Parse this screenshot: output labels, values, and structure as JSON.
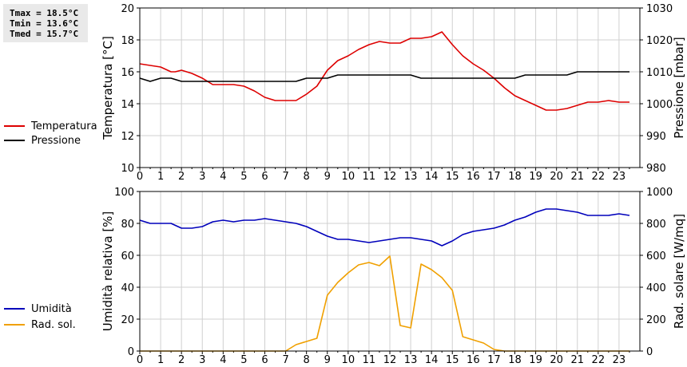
{
  "stats": {
    "tmax": "Tmax = 18.5°C",
    "tmin": "Tmin = 13.6°C",
    "tmed": "Tmed = 15.7°C"
  },
  "colors": {
    "temperature": "#dd0000",
    "pressure": "#000000",
    "humidity": "#0000bb",
    "radiation": "#f0a000"
  },
  "chart_data": [
    {
      "type": "line",
      "title": "",
      "xlabel": "",
      "ylabel": "Temperatura [°C]",
      "y2label": "Pressione [mbar]",
      "xlim": [
        0,
        24
      ],
      "ylim": [
        10,
        20
      ],
      "y2lim": [
        980,
        1030
      ],
      "xticks": [
        "0",
        "1",
        "2",
        "3",
        "4",
        "5",
        "6",
        "7",
        "8",
        "9",
        "10",
        "11",
        "12",
        "13",
        "14",
        "15",
        "16",
        "17",
        "18",
        "19",
        "20",
        "21",
        "22",
        "23"
      ],
      "yticks": [
        "10",
        "12",
        "14",
        "16",
        "18",
        "20"
      ],
      "y2ticks": [
        "980",
        "990",
        "1000",
        "1010",
        "1020",
        "1030"
      ],
      "grid": true,
      "legend": "left",
      "series": [
        {
          "name": "Temperatura",
          "axis": "left",
          "x": [
            0,
            0.5,
            1,
            1.5,
            1.7,
            2,
            2.5,
            3,
            3.5,
            4,
            4.5,
            5,
            5.5,
            6,
            6.5,
            7,
            7.5,
            8,
            8.5,
            9,
            9.5,
            10,
            10.5,
            11,
            11.5,
            12,
            12.5,
            13,
            13.5,
            14,
            14.5,
            15,
            15.5,
            16,
            16.5,
            17,
            17.5,
            18,
            18.5,
            19,
            19.5,
            20,
            20.5,
            21,
            21.5,
            22,
            22.5,
            23,
            23.5
          ],
          "y": [
            16.5,
            16.4,
            16.3,
            16.0,
            16.0,
            16.1,
            15.9,
            15.6,
            15.2,
            15.2,
            15.2,
            15.1,
            14.8,
            14.4,
            14.2,
            14.2,
            14.2,
            14.6,
            15.1,
            16.1,
            16.7,
            17.0,
            17.4,
            17.7,
            17.9,
            17.8,
            17.8,
            18.1,
            18.1,
            18.2,
            18.5,
            17.7,
            17.0,
            16.5,
            16.1,
            15.6,
            15.0,
            14.5,
            14.2,
            13.9,
            13.6,
            13.6,
            13.7,
            13.9,
            14.1,
            14.1,
            14.2,
            14.1,
            14.1
          ]
        },
        {
          "name": "Pressione",
          "axis": "right",
          "x": [
            0,
            0.5,
            1,
            1.5,
            2,
            2.5,
            3,
            3.5,
            4,
            4.5,
            5,
            5.5,
            6,
            6.5,
            7,
            7.5,
            8,
            8.5,
            9,
            9.5,
            10,
            10.5,
            11,
            11.5,
            12,
            12.5,
            13,
            13.5,
            14,
            14.5,
            15,
            15.5,
            16,
            16.5,
            17,
            17.5,
            18,
            18.5,
            19,
            19.5,
            20,
            20.5,
            21,
            21.5,
            22,
            22.5,
            23,
            23.5
          ],
          "y": [
            1008,
            1007,
            1008,
            1008,
            1007,
            1007,
            1007,
            1007,
            1007,
            1007,
            1007,
            1007,
            1007,
            1007,
            1007,
            1007,
            1008,
            1008,
            1008,
            1009,
            1009,
            1009,
            1009,
            1009,
            1009,
            1009,
            1009,
            1008,
            1008,
            1008,
            1008,
            1008,
            1008,
            1008,
            1008,
            1008,
            1008,
            1009,
            1009,
            1009,
            1009,
            1009,
            1010,
            1010,
            1010,
            1010,
            1010,
            1010
          ]
        }
      ]
    },
    {
      "type": "line",
      "title": "",
      "xlabel": "",
      "ylabel": "Umidità relativa [%]",
      "y2label": "Rad. solare [W/mq]",
      "xlim": [
        0,
        24
      ],
      "ylim": [
        0,
        100
      ],
      "y2lim": [
        0,
        1000
      ],
      "xticks": [
        "0",
        "1",
        "2",
        "3",
        "4",
        "5",
        "6",
        "7",
        "8",
        "9",
        "10",
        "11",
        "12",
        "13",
        "14",
        "15",
        "16",
        "17",
        "18",
        "19",
        "20",
        "21",
        "22",
        "23"
      ],
      "yticks": [
        "0",
        "20",
        "40",
        "60",
        "80",
        "100"
      ],
      "y2ticks": [
        "0",
        "200",
        "400",
        "600",
        "800",
        "1000"
      ],
      "grid": true,
      "legend": "left",
      "series": [
        {
          "name": "Umidità",
          "axis": "left",
          "x": [
            0,
            0.5,
            1,
            1.5,
            2,
            2.5,
            3,
            3.5,
            4,
            4.5,
            5,
            5.5,
            6,
            6.5,
            7,
            7.5,
            8,
            8.5,
            9,
            9.5,
            10,
            10.5,
            11,
            11.5,
            12,
            12.5,
            13,
            13.5,
            14,
            14.5,
            15,
            15.5,
            16,
            16.5,
            17,
            17.5,
            18,
            18.5,
            19,
            19.5,
            20,
            20.5,
            21,
            21.5,
            22,
            22.5,
            23,
            23.5
          ],
          "y": [
            82,
            80,
            80,
            80,
            77,
            77,
            78,
            81,
            82,
            81,
            82,
            82,
            83,
            82,
            81,
            80,
            78,
            75,
            72,
            70,
            70,
            69,
            68,
            69,
            70,
            71,
            71,
            70,
            69,
            66,
            69,
            73,
            75,
            76,
            77,
            79,
            82,
            84,
            87,
            89,
            89,
            88,
            87,
            85,
            85,
            85,
            86,
            85
          ]
        },
        {
          "name": "Rad. sol.",
          "axis": "right",
          "x": [
            0,
            0.5,
            1,
            1.5,
            2,
            2.5,
            3,
            3.5,
            4,
            4.5,
            5,
            5.5,
            6,
            6.5,
            7,
            7.5,
            8,
            8.5,
            9,
            9.5,
            10,
            10.5,
            11,
            11.5,
            12,
            12.5,
            13,
            13.5,
            14,
            14.5,
            15,
            15.5,
            16,
            16.5,
            17,
            17.5,
            18,
            18.5,
            19,
            19.5,
            20,
            20.5,
            21,
            21.5,
            22,
            22.5,
            23,
            23.5
          ],
          "y": [
            0,
            0,
            0,
            0,
            0,
            0,
            0,
            0,
            0,
            0,
            0,
            0,
            0,
            0,
            0,
            40,
            60,
            80,
            350,
            430,
            490,
            540,
            555,
            535,
            595,
            160,
            145,
            545,
            510,
            460,
            380,
            90,
            70,
            50,
            10,
            0,
            0,
            0,
            0,
            0,
            0,
            0,
            0,
            0,
            0,
            0,
            0,
            0
          ]
        }
      ]
    }
  ]
}
